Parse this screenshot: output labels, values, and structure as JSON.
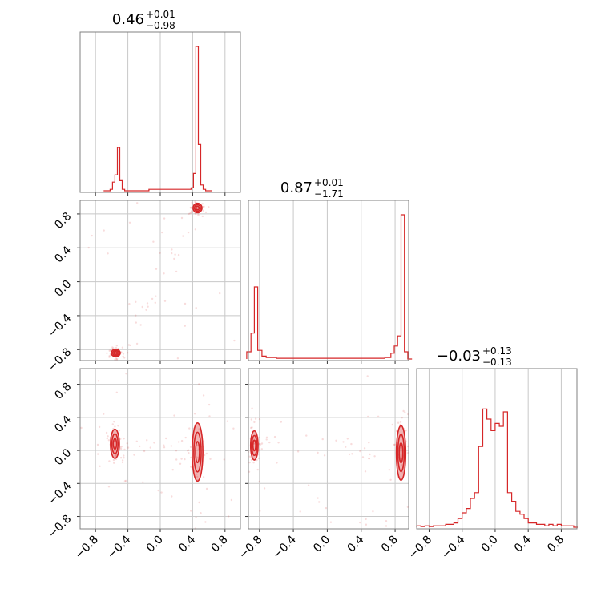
{
  "chart_data": {
    "type": "corner",
    "color": "#d62728",
    "grid": true,
    "parameters": [
      {
        "median": "0.46",
        "upper": "+0.01",
        "lower": "−0.98"
      },
      {
        "median": "0.87",
        "upper": "+0.01",
        "lower": "−1.71"
      },
      {
        "median": "−0.03",
        "upper": "+0.13",
        "lower": "−0.13"
      }
    ],
    "ranges": [
      [
        -0.99,
        0.99
      ],
      [
        -0.93,
        0.96
      ],
      [
        -0.95,
        0.99
      ]
    ],
    "ticks": [
      -0.8,
      -0.4,
      0.0,
      0.4,
      0.8
    ],
    "tick_labels": [
      "−0.8",
      "−0.4",
      "0.0",
      "0.4",
      "0.8"
    ],
    "histograms": [
      {
        "bins": [
          [
            -0.7,
            0.0
          ],
          [
            -0.62,
            0.01
          ],
          [
            -0.59,
            0.06
          ],
          [
            -0.56,
            0.11
          ],
          [
            -0.53,
            0.3
          ],
          [
            -0.5,
            0.07
          ],
          [
            -0.47,
            0.01
          ],
          [
            -0.44,
            0.0
          ],
          [
            -0.14,
            0.01
          ],
          [
            0.0,
            0.01
          ],
          [
            0.32,
            0.01
          ],
          [
            0.38,
            0.02
          ],
          [
            0.41,
            0.12
          ],
          [
            0.44,
            1.0
          ],
          [
            0.47,
            0.32
          ],
          [
            0.5,
            0.04
          ],
          [
            0.53,
            0.01
          ],
          [
            0.56,
            0.0
          ]
        ]
      },
      {
        "bins": [
          [
            -0.95,
            0.05
          ],
          [
            -0.9,
            0.18
          ],
          [
            -0.86,
            0.5
          ],
          [
            -0.82,
            0.06
          ],
          [
            -0.77,
            0.02
          ],
          [
            -0.72,
            0.01
          ],
          [
            -0.6,
            0.005
          ],
          [
            0.5,
            0.005
          ],
          [
            0.68,
            0.01
          ],
          [
            0.75,
            0.04
          ],
          [
            0.79,
            0.09
          ],
          [
            0.83,
            0.16
          ],
          [
            0.87,
            1.0
          ],
          [
            0.91,
            0.05
          ],
          [
            0.95,
            0.0
          ]
        ]
      },
      {
        "bins": [
          [
            -0.95,
            0.01
          ],
          [
            -0.9,
            0.005
          ],
          [
            -0.85,
            0.01
          ],
          [
            -0.8,
            0.005
          ],
          [
            -0.75,
            0.01
          ],
          [
            -0.7,
            0.01
          ],
          [
            -0.65,
            0.01
          ],
          [
            -0.6,
            0.02
          ],
          [
            -0.55,
            0.02
          ],
          [
            -0.5,
            0.03
          ],
          [
            -0.45,
            0.06
          ],
          [
            -0.4,
            0.1
          ],
          [
            -0.35,
            0.13
          ],
          [
            -0.3,
            0.2
          ],
          [
            -0.25,
            0.24
          ],
          [
            -0.2,
            0.56
          ],
          [
            -0.15,
            0.82
          ],
          [
            -0.1,
            0.75
          ],
          [
            -0.05,
            0.67
          ],
          [
            0.0,
            0.72
          ],
          [
            0.05,
            0.7
          ],
          [
            0.1,
            0.8
          ],
          [
            0.15,
            0.24
          ],
          [
            0.2,
            0.18
          ],
          [
            0.25,
            0.11
          ],
          [
            0.3,
            0.09
          ],
          [
            0.35,
            0.06
          ],
          [
            0.4,
            0.03
          ],
          [
            0.45,
            0.03
          ],
          [
            0.5,
            0.02
          ],
          [
            0.55,
            0.02
          ],
          [
            0.6,
            0.01
          ],
          [
            0.65,
            0.02
          ],
          [
            0.7,
            0.01
          ],
          [
            0.75,
            0.02
          ],
          [
            0.8,
            0.01
          ],
          [
            0.85,
            0.01
          ],
          [
            0.9,
            0.01
          ],
          [
            0.95,
            0.0
          ]
        ]
      }
    ],
    "joint": [
      {
        "row": 1,
        "col": 0,
        "modes": [
          {
            "x": 0.46,
            "y": 0.87,
            "sx": 0.025,
            "sy": 0.025
          },
          {
            "x": -0.55,
            "y": -0.84,
            "sx": 0.025,
            "sy": 0.02
          }
        ]
      },
      {
        "row": 2,
        "col": 0,
        "modes": [
          {
            "x": -0.56,
            "y": 0.08,
            "sx": 0.025,
            "sy": 0.08
          },
          {
            "x": 0.46,
            "y": -0.02,
            "sx": 0.03,
            "sy": 0.16
          }
        ]
      },
      {
        "row": 2,
        "col": 1,
        "modes": [
          {
            "x": -0.86,
            "y": 0.06,
            "sx": 0.02,
            "sy": 0.08
          },
          {
            "x": 0.87,
            "y": -0.03,
            "sx": 0.025,
            "sy": 0.15
          }
        ]
      }
    ]
  }
}
